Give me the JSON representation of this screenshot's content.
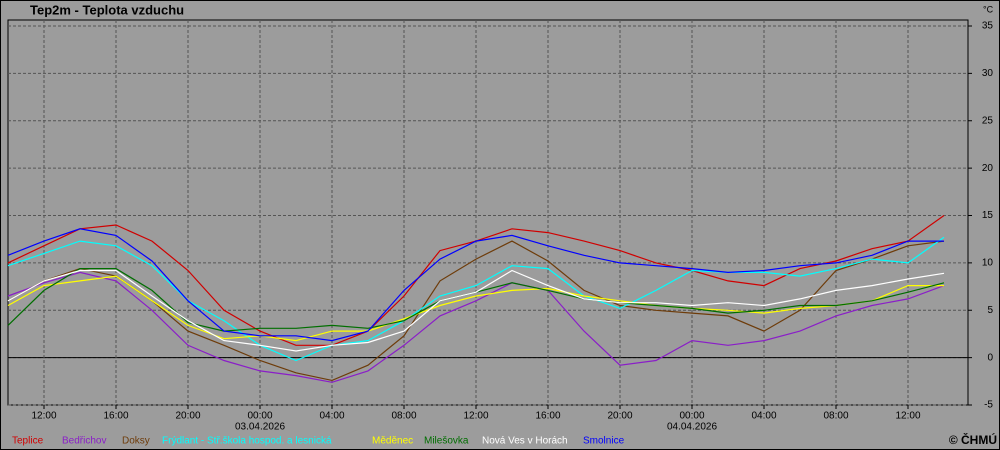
{
  "chart_data": {
    "type": "line",
    "title": "Tep2m - Teplota vzduchu",
    "y_unit": "°C",
    "copyright": "© ČHMÚ",
    "x": [
      "2026-04-02 10:00",
      "2026-04-02 12:00",
      "2026-04-02 14:00",
      "2026-04-02 16:00",
      "2026-04-02 18:00",
      "2026-04-02 20:00",
      "2026-04-02 22:00",
      "2026-04-03 00:00",
      "2026-04-03 02:00",
      "2026-04-03 04:00",
      "2026-04-03 06:00",
      "2026-04-03 08:00",
      "2026-04-03 10:00",
      "2026-04-03 12:00",
      "2026-04-03 14:00",
      "2026-04-03 16:00",
      "2026-04-03 18:00",
      "2026-04-03 20:00",
      "2026-04-03 22:00",
      "2026-04-04 00:00",
      "2026-04-04 02:00",
      "2026-04-04 04:00",
      "2026-04-04 06:00",
      "2026-04-04 08:00",
      "2026-04-04 10:00",
      "2026-04-04 12:00",
      "2026-04-04 14:00"
    ],
    "xlim": [
      "2026-04-02 10:00",
      "2026-04-04 15:20"
    ],
    "xticks": [
      {
        "value": "2026-04-02 12:00",
        "label": "12:00"
      },
      {
        "value": "2026-04-02 16:00",
        "label": "16:00"
      },
      {
        "value": "2026-04-02 20:00",
        "label": "20:00"
      },
      {
        "value": "2026-04-03 00:00",
        "label": "00:00"
      },
      {
        "value": "2026-04-03 04:00",
        "label": "04:00"
      },
      {
        "value": "2026-04-03 08:00",
        "label": "08:00"
      },
      {
        "value": "2026-04-03 12:00",
        "label": "12:00"
      },
      {
        "value": "2026-04-03 16:00",
        "label": "16:00"
      },
      {
        "value": "2026-04-03 20:00",
        "label": "20:00"
      },
      {
        "value": "2026-04-04 00:00",
        "label": "00:00"
      },
      {
        "value": "2026-04-04 04:00",
        "label": "04:00"
      },
      {
        "value": "2026-04-04 08:00",
        "label": "08:00"
      },
      {
        "value": "2026-04-04 12:00",
        "label": "12:00"
      }
    ],
    "date_labels": [
      {
        "value": "2026-04-03 00:00",
        "label": "03.04.2026"
      },
      {
        "value": "2026-04-04 00:00",
        "label": "04.04.2026"
      }
    ],
    "ylim": [
      -5,
      35
    ],
    "yticks": [
      -5,
      0,
      5,
      10,
      15,
      20,
      25,
      30,
      35
    ],
    "grid": true,
    "series": [
      {
        "name": "Teplice",
        "color": "#d00000",
        "values": [
          10,
          11.8,
          13.6,
          14,
          12.3,
          9.2,
          5,
          2.8,
          1.3,
          1.3,
          2.8,
          6.5,
          11.3,
          12.3,
          13.6,
          13.2,
          12.3,
          11.3,
          10,
          9.2,
          8.1,
          7.6,
          9.4,
          10.2,
          11.5,
          12.3,
          15
        ]
      },
      {
        "name": "Bedřichov",
        "color": "#8a1ec8",
        "values": [
          6.5,
          7.9,
          9,
          8.1,
          5,
          1.3,
          -0.3,
          -1.4,
          -1.9,
          -2.6,
          -1.4,
          1.3,
          4.4,
          6,
          7.9,
          7.1,
          2.8,
          -0.8,
          -0.3,
          1.8,
          1.3,
          1.8,
          2.8,
          4.4,
          5.5,
          6.2,
          7.6
        ]
      },
      {
        "name": "Doksy",
        "color": "#6e3c0a",
        "values": [
          6,
          8.1,
          9.4,
          8.6,
          6,
          2.8,
          1.3,
          -0.3,
          -1.6,
          -2.4,
          -0.8,
          2.3,
          8.1,
          10.4,
          12.3,
          10.2,
          7.1,
          5.5,
          5,
          4.7,
          4.4,
          2.8,
          5,
          9.2,
          10.4,
          11.8,
          12.3
        ]
      },
      {
        "name": "Frýdlant - Stř.škola hospod. a lesnická",
        "color": "#00ffff",
        "values": [
          9.7,
          11,
          12.3,
          11.8,
          9.7,
          6,
          3.9,
          1.3,
          -0.3,
          1.3,
          1.8,
          3.9,
          6.5,
          7.6,
          9.7,
          9.4,
          6.5,
          5.2,
          7.1,
          9.2,
          9,
          9,
          8.6,
          9.4,
          10.4,
          10,
          12.7
        ]
      },
      {
        "name": "Měděnec",
        "color": "#ffff00",
        "values": [
          5.5,
          7.6,
          8.1,
          8.6,
          6,
          3.4,
          2,
          2.3,
          1.8,
          2.8,
          2.8,
          4.1,
          5.5,
          6.5,
          7.1,
          7.3,
          6.5,
          6,
          5.5,
          5.2,
          5,
          4.7,
          5.2,
          5.5,
          6,
          7.6,
          7.6
        ]
      },
      {
        "name": "Milešovka",
        "color": "#006e00",
        "values": [
          3.4,
          7.1,
          9.4,
          9.4,
          7.1,
          3.7,
          2.8,
          3.1,
          3.1,
          3.4,
          3.1,
          3.9,
          6,
          6.9,
          7.9,
          7.1,
          6.2,
          5.8,
          5.5,
          5.2,
          4.7,
          5,
          5.5,
          5.5,
          6,
          6.9,
          7.9
        ]
      },
      {
        "name": "Nová Ves v Horách",
        "color": "#ffffff",
        "values": [
          6,
          8.1,
          9.2,
          9.2,
          6.5,
          3.9,
          1.8,
          1.3,
          0.7,
          1.3,
          1.6,
          2.8,
          6,
          6.9,
          9.2,
          7.6,
          6.2,
          5.8,
          5.8,
          5.5,
          5.8,
          5.5,
          6.2,
          7.1,
          7.6,
          8.3,
          8.9
        ]
      },
      {
        "name": "Smolnice",
        "color": "#0000ff",
        "values": [
          10.8,
          12.3,
          13.6,
          12.9,
          10.2,
          6,
          2.8,
          2.3,
          2.3,
          1.8,
          2.8,
          7.1,
          10.4,
          12.3,
          12.9,
          11.8,
          10.8,
          10,
          9.7,
          9.4,
          9,
          9.2,
          9.7,
          10,
          10.8,
          12.3,
          12.3
        ]
      }
    ]
  }
}
